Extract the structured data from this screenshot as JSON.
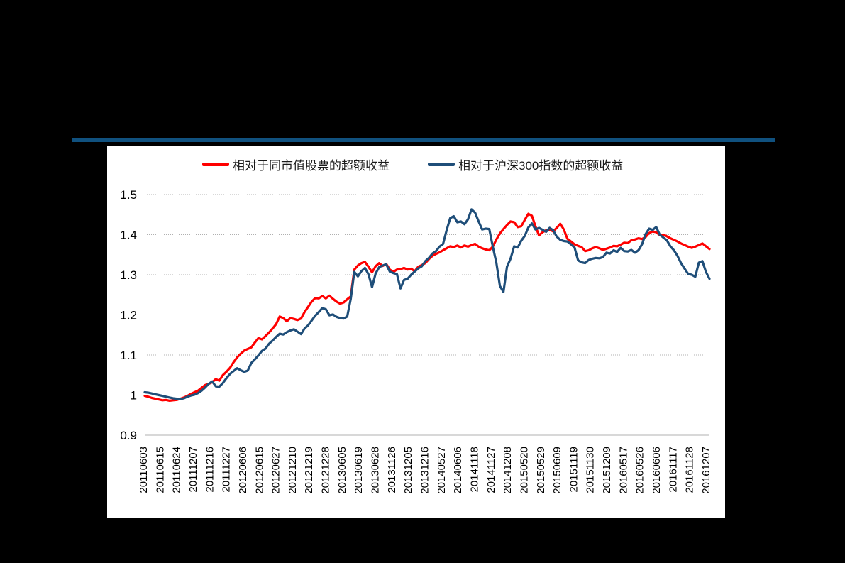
{
  "page": {
    "background_color": "#000000",
    "top_rule_color": "#10517F",
    "panel_color": "#ffffff"
  },
  "legend": [
    {
      "label": "相对于同市值股票的超额收益",
      "color": "#FF0000"
    },
    {
      "label": "相对于沪深300指数的超额收益",
      "color": "#1F4E79"
    }
  ],
  "chart_data": {
    "type": "line",
    "title": "",
    "xlabel": "",
    "ylabel": "",
    "ylim": [
      0.9,
      1.5
    ],
    "grid": "horizontal-dotted",
    "legend_position": "top",
    "y_ticks": [
      {
        "value": 0.9,
        "label": "0.9"
      },
      {
        "value": 1.0,
        "label": "1"
      },
      {
        "value": 1.1,
        "label": "1.1"
      },
      {
        "value": 1.2,
        "label": "1.2"
      },
      {
        "value": 1.3,
        "label": "1.3"
      },
      {
        "value": 1.4,
        "label": "1.4"
      },
      {
        "value": 1.5,
        "label": "1.5"
      }
    ],
    "x_tick_labels": [
      "20110603",
      "20110615",
      "20110624",
      "20111207",
      "20111216",
      "20111227",
      "20120606",
      "20120615",
      "20120627",
      "20121210",
      "20121219",
      "20121228",
      "20130605",
      "20130619",
      "20130628",
      "20131126",
      "20131205",
      "20131216",
      "20140527",
      "20140606",
      "20141118",
      "20141127",
      "20141208",
      "20150520",
      "20150529",
      "20150609",
      "20151119",
      "20151130",
      "20151209",
      "20160517",
      "20160526",
      "20160606",
      "20161117",
      "20161128",
      "20161207"
    ],
    "series": [
      {
        "name": "相对于同市值股票的超额收益",
        "color": "#FF0000",
        "values": [
          0.998,
          0.996,
          0.993,
          0.991,
          0.989,
          0.987,
          0.988,
          0.986,
          0.987,
          0.988,
          0.991,
          0.994,
          0.998,
          1.003,
          1.007,
          1.011,
          1.018,
          1.025,
          1.028,
          1.032,
          1.04,
          1.036,
          1.05,
          1.058,
          1.068,
          1.082,
          1.094,
          1.103,
          1.111,
          1.115,
          1.119,
          1.131,
          1.142,
          1.139,
          1.147,
          1.156,
          1.166,
          1.177,
          1.196,
          1.192,
          1.184,
          1.192,
          1.19,
          1.187,
          1.191,
          1.207,
          1.22,
          1.233,
          1.242,
          1.241,
          1.247,
          1.241,
          1.248,
          1.24,
          1.233,
          1.228,
          1.231,
          1.239,
          1.246,
          1.313,
          1.323,
          1.329,
          1.332,
          1.32,
          1.306,
          1.321,
          1.329,
          1.322,
          1.327,
          1.313,
          1.307,
          1.313,
          1.314,
          1.317,
          1.313,
          1.315,
          1.309,
          1.32,
          1.324,
          1.329,
          1.339,
          1.347,
          1.352,
          1.356,
          1.361,
          1.366,
          1.371,
          1.369,
          1.373,
          1.368,
          1.373,
          1.37,
          1.374,
          1.377,
          1.37,
          1.366,
          1.363,
          1.361,
          1.37,
          1.388,
          1.403,
          1.414,
          1.424,
          1.433,
          1.431,
          1.419,
          1.421,
          1.437,
          1.452,
          1.447,
          1.421,
          1.398,
          1.406,
          1.411,
          1.413,
          1.408,
          1.417,
          1.427,
          1.413,
          1.39,
          1.383,
          1.376,
          1.372,
          1.369,
          1.359,
          1.361,
          1.366,
          1.369,
          1.366,
          1.362,
          1.365,
          1.368,
          1.372,
          1.371,
          1.375,
          1.38,
          1.379,
          1.386,
          1.388,
          1.391,
          1.389,
          1.394,
          1.404,
          1.408,
          1.406,
          1.399,
          1.4,
          1.396,
          1.391,
          1.387,
          1.383,
          1.378,
          1.374,
          1.37,
          1.367,
          1.37,
          1.374,
          1.378,
          1.371,
          1.364
        ]
      },
      {
        "name": "相对于沪深300指数的超额收益",
        "color": "#1F4E79",
        "values": [
          1.007,
          1.006,
          1.004,
          1.002,
          1.0,
          0.998,
          0.996,
          0.994,
          0.992,
          0.991,
          0.99,
          0.992,
          0.996,
          0.999,
          1.001,
          1.005,
          1.011,
          1.019,
          1.028,
          1.034,
          1.022,
          1.021,
          1.03,
          1.042,
          1.053,
          1.06,
          1.067,
          1.062,
          1.058,
          1.061,
          1.08,
          1.089,
          1.099,
          1.11,
          1.116,
          1.128,
          1.136,
          1.145,
          1.153,
          1.151,
          1.157,
          1.161,
          1.164,
          1.158,
          1.152,
          1.166,
          1.174,
          1.186,
          1.198,
          1.207,
          1.217,
          1.214,
          1.199,
          1.201,
          1.195,
          1.192,
          1.191,
          1.196,
          1.24,
          1.307,
          1.296,
          1.309,
          1.317,
          1.301,
          1.269,
          1.303,
          1.319,
          1.323,
          1.326,
          1.308,
          1.304,
          1.302,
          1.266,
          1.287,
          1.29,
          1.3,
          1.308,
          1.316,
          1.321,
          1.334,
          1.342,
          1.353,
          1.359,
          1.37,
          1.377,
          1.411,
          1.441,
          1.446,
          1.431,
          1.433,
          1.426,
          1.438,
          1.463,
          1.455,
          1.433,
          1.413,
          1.415,
          1.414,
          1.37,
          1.33,
          1.272,
          1.257,
          1.32,
          1.34,
          1.371,
          1.368,
          1.385,
          1.397,
          1.418,
          1.428,
          1.413,
          1.417,
          1.412,
          1.407,
          1.417,
          1.411,
          1.395,
          1.387,
          1.384,
          1.383,
          1.376,
          1.368,
          1.336,
          1.331,
          1.329,
          1.337,
          1.34,
          1.342,
          1.341,
          1.344,
          1.355,
          1.353,
          1.361,
          1.357,
          1.367,
          1.359,
          1.358,
          1.362,
          1.355,
          1.361,
          1.376,
          1.401,
          1.415,
          1.412,
          1.419,
          1.4,
          1.393,
          1.386,
          1.371,
          1.361,
          1.347,
          1.329,
          1.315,
          1.302,
          1.3,
          1.295,
          1.33,
          1.334,
          1.307,
          1.29
        ]
      }
    ]
  }
}
